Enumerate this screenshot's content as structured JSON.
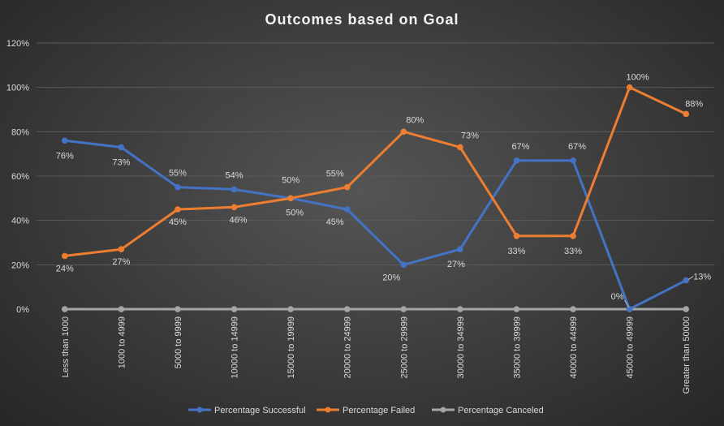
{
  "chart_data": {
    "type": "line",
    "title": "Outcomes  based  on  Goal",
    "categories": [
      "Less than 1000",
      "1000 to 4999",
      "5000 to 9999",
      "10000 to 14999",
      "15000 to 19999",
      "20000 to 24999",
      "25000 to 29999",
      "30000 to 34999",
      "35000 to 39999",
      "40000 to 44999",
      "45000 to 49999",
      "Greater than 50000"
    ],
    "ylim": [
      0,
      120
    ],
    "yticks": [
      0,
      20,
      40,
      60,
      80,
      100,
      120
    ],
    "ytick_labels": [
      "0%",
      "20%",
      "40%",
      "60%",
      "80%",
      "100%",
      "120%"
    ],
    "grid": true,
    "legend_position": "bottom",
    "series": [
      {
        "name": "Percentage Successful",
        "color": "#4472c4",
        "values": [
          76,
          73,
          55,
          54,
          50,
          45,
          20,
          27,
          67,
          67,
          0,
          13
        ],
        "labels": [
          "76%",
          "73%",
          "55%",
          "54%",
          "50%",
          "45%",
          "20%",
          "27%",
          "67%",
          "67%",
          "0%",
          "13%"
        ]
      },
      {
        "name": "Percentage Failed",
        "color": "#ed7d31",
        "values": [
          24,
          27,
          45,
          46,
          50,
          55,
          80,
          73,
          33,
          33,
          100,
          88
        ],
        "labels": [
          "24%",
          "27%",
          "45%",
          "46%",
          "50%",
          "55%",
          "80%",
          "73%",
          "33%",
          "33%",
          "100%",
          "88%"
        ]
      },
      {
        "name": "Percentage Canceled",
        "color": "#a5a5a5",
        "values": [
          0,
          0,
          0,
          0,
          0,
          0,
          0,
          0,
          0,
          0,
          0,
          0
        ],
        "labels": []
      }
    ]
  }
}
